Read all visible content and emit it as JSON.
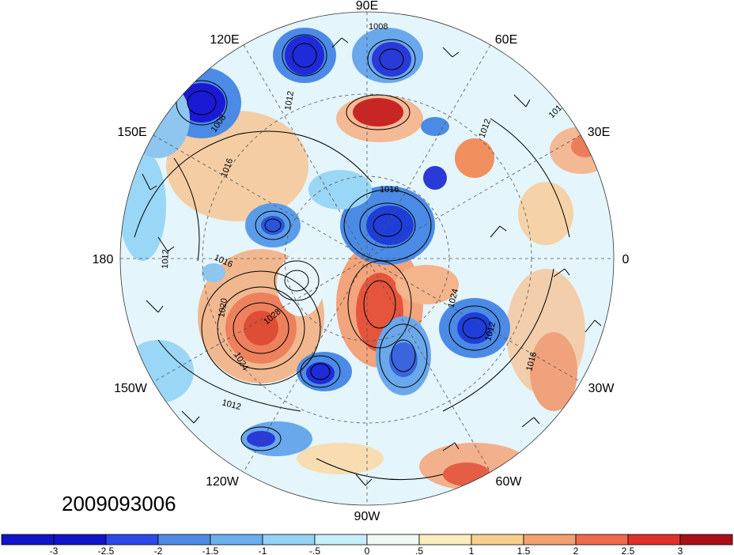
{
  "map": {
    "timestamp": "2009093006",
    "projection": "north-polar-stereographic",
    "longitude_labels": {
      "n90e": "90E",
      "n120e": "120E",
      "n60e": "60E",
      "n150e": "150E",
      "n30e": "30E",
      "n180": "180",
      "n0": "0",
      "n150w": "150W",
      "n30w": "30W",
      "n120w": "120W",
      "n60w": "60W",
      "n90w": "90W"
    },
    "contour_labels": [
      "1008",
      "1012",
      "1016",
      "1020",
      "1024",
      "1028"
    ],
    "field_colors": {
      "strong_neg": "#2323d6",
      "neg": "#4b8be6",
      "weak_neg": "#9ad6f5",
      "near_zero": "#e9f7fb",
      "weak_pos": "#f9e6b8",
      "pos": "#f19860",
      "strong_pos": "#c81e1e"
    }
  },
  "colorbar": {
    "labels": [
      "-3",
      "-2.5",
      "-2",
      "-1.5",
      "-1",
      "-.5",
      "0",
      ".5",
      "1",
      "1.5",
      "2",
      "2.5",
      "3"
    ],
    "colors": [
      "#1313c8",
      "#2d4ae8",
      "#4e8ae4",
      "#6bb0ee",
      "#93d2f4",
      "#c8eefa",
      "#f2f9f5",
      "#fbeebe",
      "#f7cf8e",
      "#f3a070",
      "#ee6a4f",
      "#e0302c",
      "#a8101a"
    ]
  }
}
